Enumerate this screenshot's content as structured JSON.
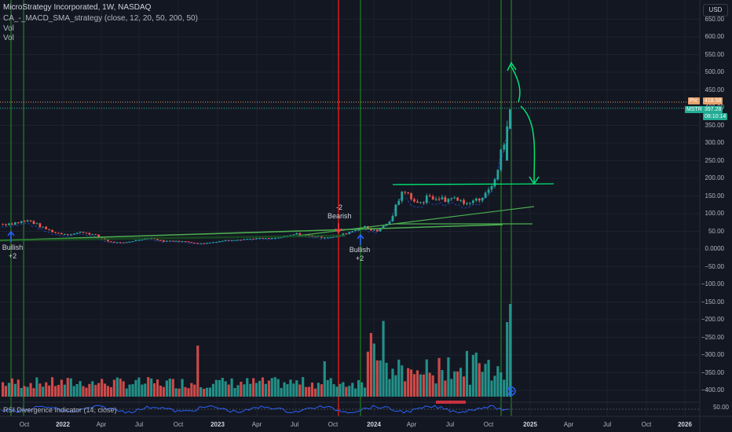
{
  "header": {
    "title": "MicroStrategy Incorporated, 1W, NASDAQ",
    "indicator": "CA_-_MACD_SMA_strategy (close, 12, 20, 50, 200, 50)",
    "vol1": "Vol",
    "vol2": "Vol"
  },
  "rsi_title": "RSI Divergence Indicator (14, close)",
  "currency_label": "USD",
  "price_tags": {
    "prev_label": "Prc",
    "prev_value": "418.58",
    "symbol": "MSTR",
    "last_value": "397.28",
    "countdown": "08:10:14"
  },
  "signals": [
    {
      "label": "Bullish\n+2",
      "color": "#2962ff"
    },
    {
      "label": "-2\nBearish",
      "color": "#f23645"
    },
    {
      "label": "Bullish\n+2",
      "color": "#2962ff"
    }
  ],
  "colors": {
    "background": "#131722",
    "up": "#26a69a",
    "down": "#ef5350",
    "green_line": "#4caf50",
    "annotation": "#00e676",
    "rsi_line": "#2962ff",
    "signal_green": "#1b5e20",
    "signal_red": "#b71c1c"
  },
  "chart_data": {
    "type": "candlestick",
    "title": "MicroStrategy Incorporated, 1W, NASDAQ",
    "y_axis": {
      "ticks": [
        "650.00",
        "600.00",
        "550.00",
        "500.00",
        "450.00",
        "400.00",
        "350.00",
        "300.00",
        "250.00",
        "200.00",
        "150.00",
        "100.00",
        "50.00",
        "0.0000",
        "−50.00",
        "−100.00",
        "−150.00",
        "−200.00",
        "−250.00",
        "−300.00",
        "−350.00",
        "−400.00"
      ],
      "range": [
        -420,
        680
      ],
      "rsi_tick": "50.00"
    },
    "x_axis": {
      "ticks": [
        {
          "label": "Oct",
          "bold": false
        },
        {
          "label": "2022",
          "bold": true
        },
        {
          "label": "Apr",
          "bold": false
        },
        {
          "label": "Jul",
          "bold": false
        },
        {
          "label": "Oct",
          "bold": false
        },
        {
          "label": "2023",
          "bold": true
        },
        {
          "label": "Apr",
          "bold": false
        },
        {
          "label": "Jul",
          "bold": false
        },
        {
          "label": "Oct",
          "bold": false
        },
        {
          "label": "2024",
          "bold": true
        },
        {
          "label": "Apr",
          "bold": false
        },
        {
          "label": "Jul",
          "bold": false
        },
        {
          "label": "Oct",
          "bold": false
        },
        {
          "label": "2025",
          "bold": true
        },
        {
          "label": "Apr",
          "bold": false
        },
        {
          "label": "Jul",
          "bold": false
        },
        {
          "label": "Oct",
          "bold": false
        },
        {
          "label": "2026",
          "bold": true
        }
      ]
    },
    "last_price": 397.28,
    "prev_close": 418.58,
    "price_series_weekly_close": [
      {
        "date": "2021-09",
        "close": 70
      },
      {
        "date": "2021-10",
        "close": 75
      },
      {
        "date": "2021-11",
        "close": 80
      },
      {
        "date": "2021-12",
        "close": 60
      },
      {
        "date": "2022-01",
        "close": 45
      },
      {
        "date": "2022-02",
        "close": 42
      },
      {
        "date": "2022-03",
        "close": 48
      },
      {
        "date": "2022-04",
        "close": 38
      },
      {
        "date": "2022-05",
        "close": 20
      },
      {
        "date": "2022-06",
        "close": 17
      },
      {
        "date": "2022-07",
        "close": 25
      },
      {
        "date": "2022-08",
        "close": 32
      },
      {
        "date": "2022-09",
        "close": 22
      },
      {
        "date": "2022-10",
        "close": 24
      },
      {
        "date": "2022-11",
        "close": 19
      },
      {
        "date": "2022-12",
        "close": 15
      },
      {
        "date": "2023-01",
        "close": 21
      },
      {
        "date": "2023-02",
        "close": 26
      },
      {
        "date": "2023-03",
        "close": 28
      },
      {
        "date": "2023-04",
        "close": 30
      },
      {
        "date": "2023-05",
        "close": 29
      },
      {
        "date": "2023-06",
        "close": 34
      },
      {
        "date": "2023-07",
        "close": 43
      },
      {
        "date": "2023-08",
        "close": 37
      },
      {
        "date": "2023-09",
        "close": 33
      },
      {
        "date": "2023-10",
        "close": 35
      },
      {
        "date": "2023-11",
        "close": 49
      },
      {
        "date": "2023-12",
        "close": 63
      },
      {
        "date": "2024-01",
        "close": 50
      },
      {
        "date": "2024-02",
        "close": 80
      },
      {
        "date": "2024-03",
        "close": 170
      },
      {
        "date": "2024-04",
        "close": 125
      },
      {
        "date": "2024-05",
        "close": 150
      },
      {
        "date": "2024-06",
        "close": 140
      },
      {
        "date": "2024-07",
        "close": 145
      },
      {
        "date": "2024-08",
        "close": 125
      },
      {
        "date": "2024-09",
        "close": 155
      },
      {
        "date": "2024-10",
        "close": 210
      },
      {
        "date": "2024-11",
        "close": 397.28
      }
    ],
    "volume_note": "weekly volume histogram, up weeks teal, down weeks red"
  }
}
